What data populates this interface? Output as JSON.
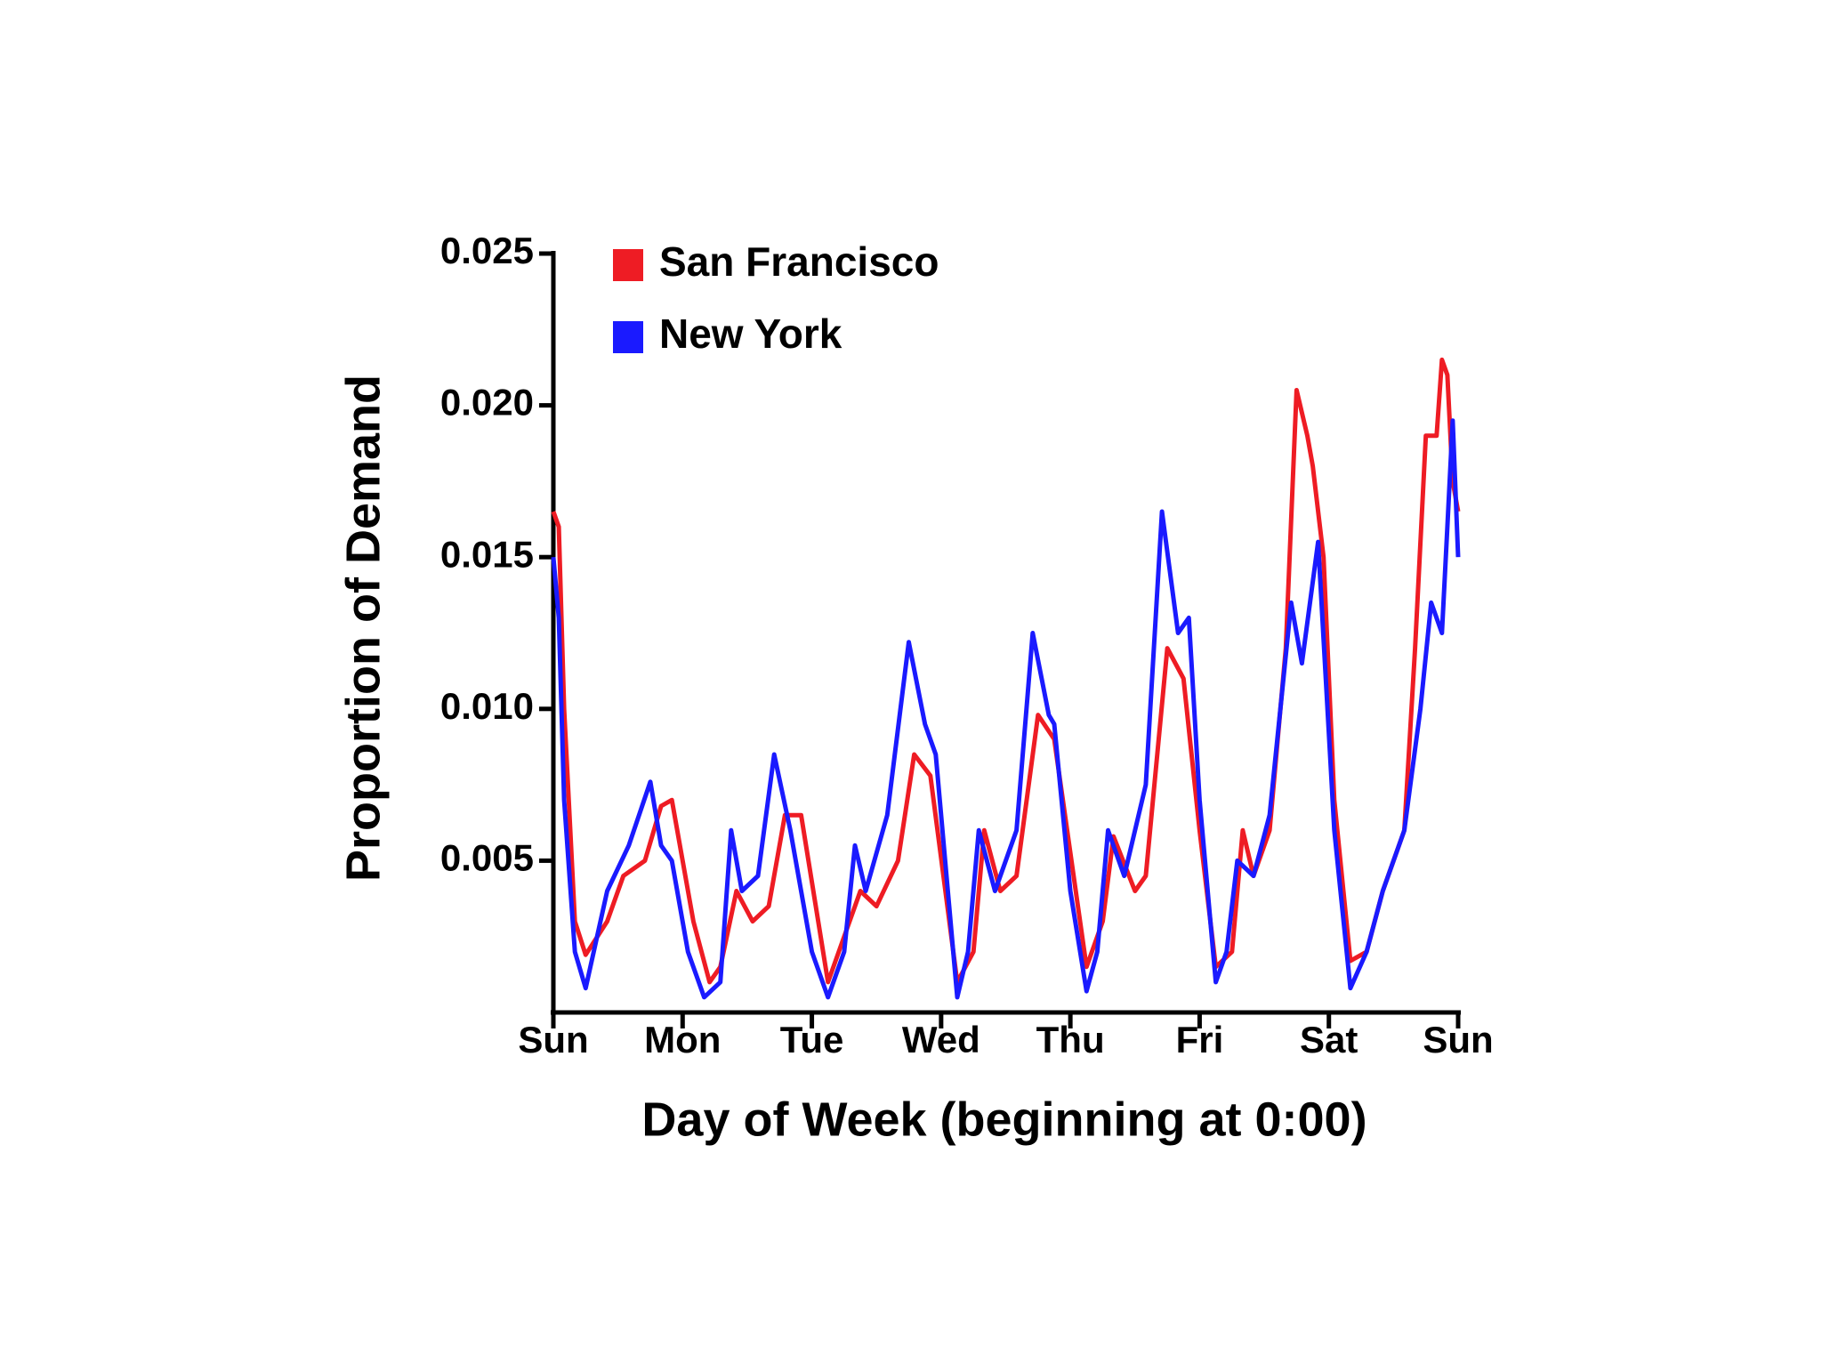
{
  "chart_data": {
    "type": "line",
    "xlabel": "Day of Week (beginning at 0:00)",
    "ylabel": "Proportion of Demand",
    "xlim": [
      0,
      168
    ],
    "xticks": [
      {
        "value": 0,
        "label": "Sun"
      },
      {
        "value": 24,
        "label": "Mon"
      },
      {
        "value": 48,
        "label": "Tue"
      },
      {
        "value": 72,
        "label": "Wed"
      },
      {
        "value": 96,
        "label": "Thu"
      },
      {
        "value": 120,
        "label": "Fri"
      },
      {
        "value": 144,
        "label": "Sat"
      },
      {
        "value": 168,
        "label": "Sun"
      }
    ],
    "ylim": [
      0,
      0.025
    ],
    "yticks": [
      0.005,
      {
        "value": 0.01,
        "label": "0.010"
      },
      0.015,
      {
        "value": 0.02,
        "label": "0.020"
      },
      0.025
    ],
    "legend": "upper left",
    "series": [
      {
        "name": "San Francisco",
        "color": "#ee1c24",
        "x": [
          0,
          1,
          2,
          4,
          6,
          10,
          13,
          17,
          20,
          22,
          26,
          29,
          31,
          34,
          37,
          40,
          43,
          46,
          51,
          54,
          57,
          60,
          64,
          67,
          70,
          75,
          78,
          80,
          83,
          86,
          90,
          93,
          99,
          102,
          104,
          108,
          110,
          114,
          117,
          120,
          123,
          126,
          128,
          130,
          133,
          136,
          138,
          140,
          141,
          143,
          145,
          148,
          151,
          154,
          158,
          160,
          162,
          164,
          165,
          166,
          167,
          168
        ],
        "values": [
          0.0165,
          0.016,
          0.01,
          0.003,
          0.0019,
          0.003,
          0.0045,
          0.005,
          0.0068,
          0.007,
          0.003,
          0.001,
          0.0015,
          0.004,
          0.003,
          0.0035,
          0.0065,
          0.0065,
          0.001,
          0.0025,
          0.004,
          0.0035,
          0.005,
          0.0085,
          0.0078,
          0.001,
          0.002,
          0.006,
          0.004,
          0.0045,
          0.0098,
          0.009,
          0.0015,
          0.003,
          0.0058,
          0.004,
          0.0045,
          0.012,
          0.011,
          0.006,
          0.0015,
          0.002,
          0.006,
          0.0045,
          0.006,
          0.012,
          0.0205,
          0.019,
          0.018,
          0.015,
          0.007,
          0.0017,
          0.002,
          0.004,
          0.006,
          0.012,
          0.019,
          0.019,
          0.0215,
          0.021,
          0.0175,
          0.0165
        ]
      },
      {
        "name": "New York",
        "color": "#1a1aff",
        "x": [
          0,
          1,
          2,
          4,
          6,
          10,
          14,
          18,
          20,
          22,
          25,
          28,
          31,
          33,
          35,
          38,
          41,
          44,
          48,
          51,
          54,
          56,
          58,
          62,
          66,
          69,
          71,
          75,
          77,
          79,
          82,
          86,
          89,
          92,
          93,
          96,
          99,
          101,
          103,
          106,
          110,
          113,
          116,
          118,
          120,
          123,
          125,
          127,
          130,
          133,
          137,
          139,
          142,
          145,
          148,
          151,
          154,
          158,
          161,
          163,
          165,
          166,
          167,
          168
        ],
        "values": [
          0.015,
          0.013,
          0.007,
          0.002,
          0.0008,
          0.004,
          0.0055,
          0.0076,
          0.0055,
          0.005,
          0.002,
          0.0005,
          0.001,
          0.006,
          0.004,
          0.0045,
          0.0085,
          0.006,
          0.002,
          0.0005,
          0.002,
          0.0055,
          0.004,
          0.0065,
          0.0122,
          0.0095,
          0.0085,
          0.0005,
          0.002,
          0.006,
          0.004,
          0.006,
          0.0125,
          0.0098,
          0.0095,
          0.004,
          0.0007,
          0.002,
          0.006,
          0.0045,
          0.0075,
          0.0165,
          0.0125,
          0.013,
          0.007,
          0.001,
          0.002,
          0.005,
          0.0045,
          0.0065,
          0.0135,
          0.0115,
          0.0155,
          0.006,
          0.0008,
          0.002,
          0.004,
          0.006,
          0.01,
          0.0135,
          0.0125,
          0.016,
          0.0195,
          0.015
        ]
      }
    ]
  }
}
